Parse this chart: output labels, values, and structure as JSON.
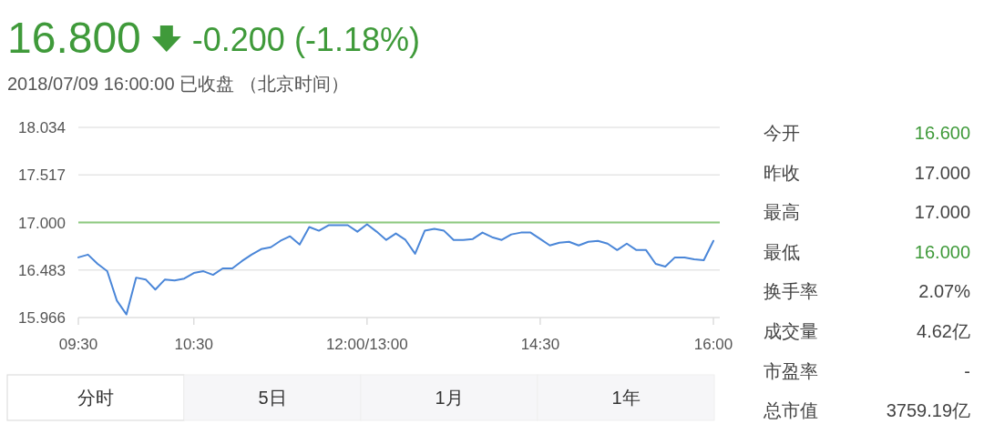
{
  "chart_data": [
    {
      "type": "line",
      "title": "16.800",
      "subtitle": "2018/07/09 16:00:00 已收盘 （北京时间）",
      "annotations": [
        "-0.200 (-1.18%)",
        "分时",
        "5日",
        "1月",
        "1年"
      ],
      "categories": [
        "09:30",
        null,
        null,
        null,
        null,
        null,
        null,
        null,
        null,
        null,
        null,
        null,
        "10:30",
        null,
        null,
        null,
        null,
        null,
        null,
        null,
        null,
        null,
        null,
        null,
        null,
        null,
        null,
        null,
        null,
        null,
        "12:00/13:00",
        null,
        null,
        null,
        null,
        null,
        null,
        null,
        null,
        null,
        null,
        null,
        null,
        null,
        null,
        null,
        null,
        null,
        "14:30",
        null,
        null,
        null,
        null,
        null,
        null,
        null,
        null,
        null,
        null,
        null,
        null,
        null,
        null,
        null,
        null,
        null,
        "16:00"
      ],
      "ylim": [
        15.966,
        18.034
      ],
      "yticks": [
        15.966,
        16.483,
        {
          "value": 17,
          "label": "17.000"
        },
        17.517,
        18.034
      ],
      "grid": "y",
      "ref_lines": [
        {
          "axis": "y",
          "value": 17.0,
          "color": "#8cc97e"
        }
      ],
      "series": [
        {
          "color": "#4a86d8",
          "values": [
            16.62,
            16.65,
            16.55,
            16.47,
            16.15,
            16.0,
            16.4,
            16.38,
            16.27,
            16.38,
            16.37,
            16.39,
            16.45,
            16.47,
            16.43,
            16.5,
            16.5,
            16.58,
            16.65,
            16.71,
            16.73,
            16.8,
            16.85,
            16.76,
            16.95,
            16.91,
            16.97,
            16.97,
            16.97,
            16.9,
            16.98,
            16.9,
            16.81,
            16.88,
            16.81,
            16.66,
            16.91,
            16.93,
            16.91,
            16.81,
            16.81,
            16.82,
            16.89,
            16.84,
            16.81,
            16.87,
            16.89,
            16.89,
            16.82,
            16.75,
            16.78,
            16.79,
            16.75,
            16.79,
            16.8,
            16.77,
            16.7,
            16.77,
            16.7,
            16.7,
            16.55,
            16.52,
            16.62,
            16.62,
            16.6,
            16.59,
            16.8
          ]
        }
      ]
    },
    {
      "type": "other",
      "categories": [
        "今开",
        "昨收",
        "最高",
        "最低",
        "换手率",
        "成交量",
        "市盈率",
        "总市值"
      ],
      "value_labels": [
        "16.600",
        "17.000",
        "17.000",
        "16.000",
        "2.07%",
        "4.62亿",
        "-",
        "3759.19亿"
      ],
      "colors": [
        "#3f9a3a",
        "#444444",
        "#444444",
        "#3f9a3a",
        "#444444",
        "#444444",
        "#444444",
        "#444444"
      ]
    }
  ]
}
